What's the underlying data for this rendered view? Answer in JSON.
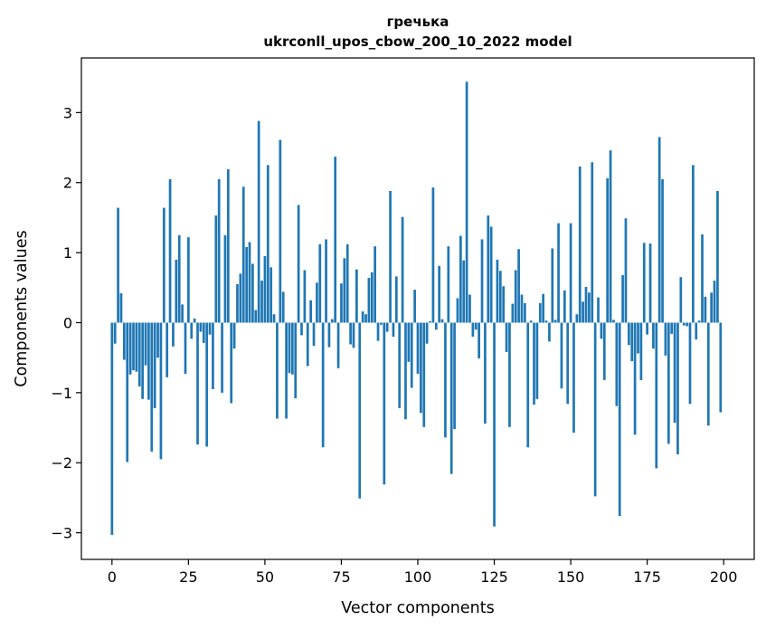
{
  "chart_data": {
    "type": "bar",
    "title": "гречька",
    "subtitle": "ukrconll_upos_cbow_200_10_2022 model",
    "xlabel": "Vector components",
    "ylabel": "Components values",
    "xlim": [
      -10,
      210
    ],
    "ylim": [
      -3.38,
      3.78
    ],
    "xticks": [
      0,
      25,
      50,
      75,
      100,
      125,
      150,
      175,
      200
    ],
    "yticks": [
      -3,
      -2,
      -1,
      0,
      1,
      2,
      3
    ],
    "ytick_labels": [
      "−3",
      "−2",
      "−1",
      "0",
      "1",
      "2",
      "3"
    ],
    "bar_color": "#1f77b4",
    "values": [
      -3.03,
      -0.3,
      1.64,
      0.42,
      -0.53,
      -1.99,
      -0.74,
      -0.68,
      -0.7,
      -0.91,
      -1.09,
      -0.61,
      -1.1,
      -1.84,
      -1.22,
      -0.5,
      -1.95,
      1.64,
      -0.78,
      2.05,
      -0.34,
      0.9,
      1.25,
      0.26,
      -0.73,
      1.22,
      -0.23,
      0.06,
      -1.74,
      -0.13,
      -0.29,
      -1.77,
      -0.17,
      -0.95,
      1.53,
      2.05,
      -1.0,
      1.25,
      2.19,
      -1.15,
      -0.37,
      0.55,
      0.7,
      1.94,
      1.08,
      1.15,
      0.84,
      0.18,
      2.88,
      0.6,
      0.95,
      2.25,
      0.79,
      0.12,
      -1.37,
      2.61,
      0.44,
      -1.37,
      -0.72,
      -0.74,
      -1.08,
      1.68,
      -0.18,
      0.75,
      -0.62,
      0.32,
      -0.33,
      0.57,
      1.12,
      -1.78,
      1.19,
      -0.35,
      0.05,
      2.37,
      -0.65,
      0.56,
      0.92,
      1.12,
      -0.31,
      -0.36,
      0.76,
      -2.51,
      0.16,
      0.12,
      0.64,
      0.72,
      1.09,
      -0.26,
      -0.03,
      -2.31,
      -0.13,
      1.88,
      -0.2,
      0.66,
      -1.22,
      1.51,
      -1.38,
      -0.56,
      -0.93,
      0.47,
      -0.73,
      -1.29,
      -1.49,
      -0.3,
      0.02,
      1.93,
      -0.1,
      0.81,
      0.05,
      -1.64,
      1.09,
      -2.16,
      -1.52,
      0.35,
      1.24,
      0.89,
      3.44,
      0.4,
      -0.2,
      -0.1,
      -0.51,
      1.19,
      -1.44,
      1.53,
      1.37,
      -2.91,
      0.9,
      0.74,
      0.52,
      -0.42,
      -1.49,
      0.27,
      0.75,
      1.05,
      0.4,
      0.28,
      -1.78,
      0.03,
      -1.17,
      -1.09,
      0.28,
      0.41,
      0.03,
      -0.27,
      1.06,
      0.04,
      1.42,
      -0.94,
      0.46,
      -1.16,
      1.42,
      -1.57,
      0.12,
      2.23,
      0.3,
      0.51,
      0.43,
      2.29,
      -2.48,
      0.36,
      -0.23,
      -0.82,
      2.06,
      2.46,
      0.04,
      -1.19,
      -2.76,
      0.68,
      1.49,
      -0.32,
      -0.55,
      -1.6,
      -0.44,
      -0.82,
      1.14,
      -0.17,
      1.13,
      -0.37,
      -2.08,
      2.65,
      2.05,
      -0.47,
      -1.73,
      -0.16,
      -1.43,
      -1.88,
      0.65,
      -0.04,
      -0.05,
      -1.16,
      2.25,
      -0.24,
      0.03,
      1.26,
      0.37,
      -1.47,
      0.43,
      0.6,
      1.88,
      -1.28
    ]
  }
}
